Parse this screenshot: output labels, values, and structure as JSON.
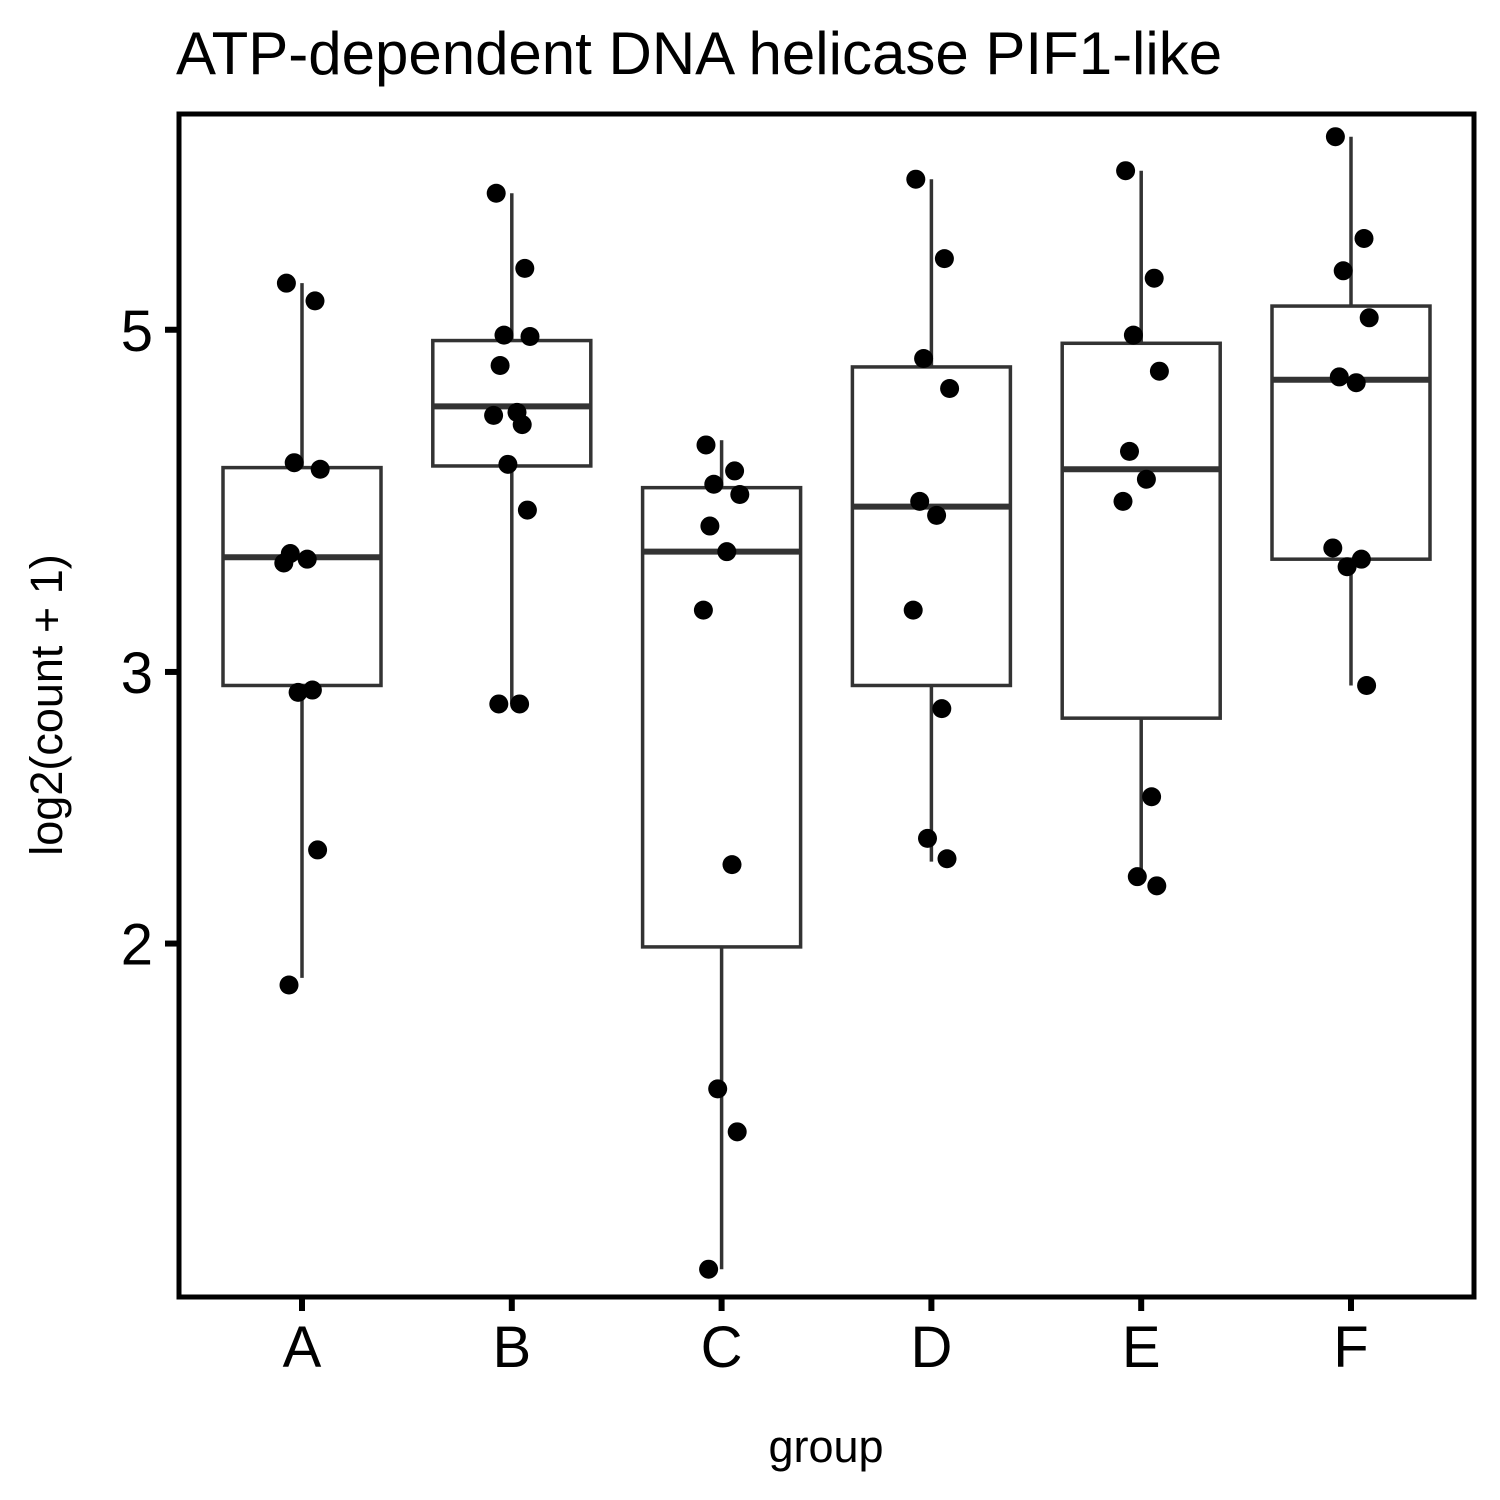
{
  "chart_data": {
    "type": "box",
    "title": "ATP-dependent DNA helicase PIF1-like",
    "xlabel": "group",
    "ylabel": "log2(count + 1)",
    "y_scale": "log",
    "ylim": [
      1.18,
      6.9
    ],
    "y_ticks": [
      2,
      3,
      5
    ],
    "y_tick_labels": [
      "2",
      "3",
      "5"
    ],
    "categories": [
      "A",
      "B",
      "C",
      "D",
      "E",
      "F"
    ],
    "grid": false,
    "boxes": [
      {
        "group": "A",
        "whisker_low": 1.9,
        "q1": 2.94,
        "median": 3.56,
        "q3": 4.07,
        "whisker_high": 5.36
      },
      {
        "group": "B",
        "whisker_low": 2.86,
        "q1": 4.08,
        "median": 4.46,
        "q3": 4.92,
        "whisker_high": 6.13
      },
      {
        "group": "C",
        "whisker_low": 1.23,
        "q1": 1.99,
        "median": 3.59,
        "q3": 3.95,
        "whisker_high": 4.24
      },
      {
        "group": "D",
        "whisker_low": 2.26,
        "q1": 2.94,
        "median": 3.84,
        "q3": 4.73,
        "whisker_high": 6.26
      },
      {
        "group": "E",
        "whisker_low": 2.21,
        "q1": 2.8,
        "median": 4.06,
        "q3": 4.9,
        "whisker_high": 6.34
      },
      {
        "group": "F",
        "whisker_low": 2.94,
        "q1": 3.55,
        "median": 4.64,
        "q3": 5.18,
        "whisker_high": 6.67
      }
    ],
    "points": [
      {
        "group": "A",
        "values": [
          5.36,
          5.22,
          4.1,
          4.06,
          3.58,
          3.55,
          3.53,
          2.92,
          2.91,
          2.3,
          1.88
        ]
      },
      {
        "group": "B",
        "values": [
          6.13,
          5.48,
          4.96,
          4.95,
          4.74,
          4.42,
          4.4,
          4.34,
          4.09,
          3.82,
          2.86,
          2.86
        ]
      },
      {
        "group": "C",
        "values": [
          4.21,
          4.05,
          3.97,
          3.91,
          3.73,
          3.59,
          3.29,
          2.25,
          1.61,
          1.51,
          1.23
        ]
      },
      {
        "group": "D",
        "values": [
          6.26,
          5.56,
          4.79,
          4.58,
          3.87,
          3.79,
          3.29,
          2.84,
          2.34,
          2.27
        ]
      },
      {
        "group": "E",
        "values": [
          6.34,
          5.4,
          4.96,
          4.7,
          4.17,
          4.0,
          3.87,
          2.49,
          2.21,
          2.18
        ]
      },
      {
        "group": "F",
        "values": [
          6.67,
          5.73,
          5.46,
          5.09,
          4.66,
          4.62,
          3.61,
          3.55,
          3.51,
          2.94
        ]
      }
    ]
  }
}
